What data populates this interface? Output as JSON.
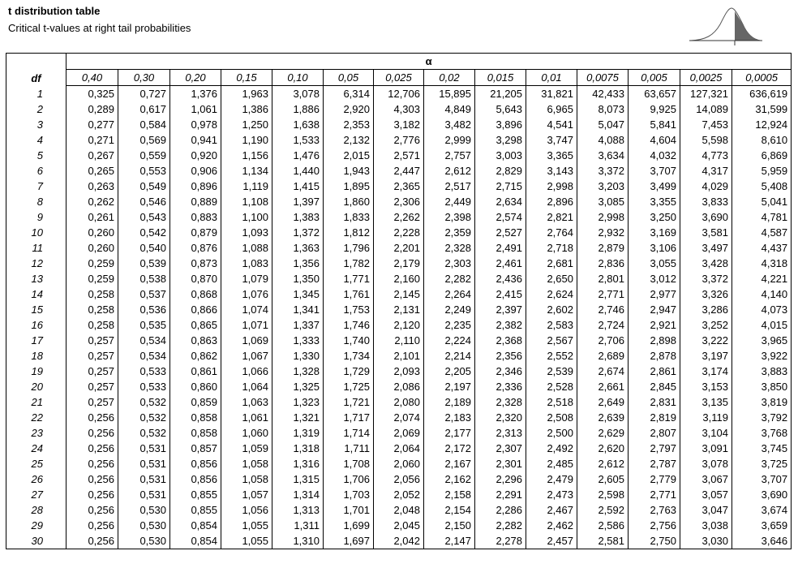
{
  "header": {
    "title": "t distribution table",
    "subtitle": "Critical t-values at right tail probabilities"
  },
  "table": {
    "df_label": "df",
    "alpha_label": "α",
    "columns": [
      "0,40",
      "0,30",
      "0,20",
      "0,15",
      "0,10",
      "0,05",
      "0,025",
      "0,02",
      "0,015",
      "0,01",
      "0,0075",
      "0,005",
      "0,0025",
      "0,0005"
    ],
    "rows": [
      [
        "1",
        "0,325",
        "0,727",
        "1,376",
        "1,963",
        "3,078",
        "6,314",
        "12,706",
        "15,895",
        "21,205",
        "31,821",
        "42,433",
        "63,657",
        "127,321",
        "636,619"
      ],
      [
        "2",
        "0,289",
        "0,617",
        "1,061",
        "1,386",
        "1,886",
        "2,920",
        "4,303",
        "4,849",
        "5,643",
        "6,965",
        "8,073",
        "9,925",
        "14,089",
        "31,599"
      ],
      [
        "3",
        "0,277",
        "0,584",
        "0,978",
        "1,250",
        "1,638",
        "2,353",
        "3,182",
        "3,482",
        "3,896",
        "4,541",
        "5,047",
        "5,841",
        "7,453",
        "12,924"
      ],
      [
        "4",
        "0,271",
        "0,569",
        "0,941",
        "1,190",
        "1,533",
        "2,132",
        "2,776",
        "2,999",
        "3,298",
        "3,747",
        "4,088",
        "4,604",
        "5,598",
        "8,610"
      ],
      [
        "5",
        "0,267",
        "0,559",
        "0,920",
        "1,156",
        "1,476",
        "2,015",
        "2,571",
        "2,757",
        "3,003",
        "3,365",
        "3,634",
        "4,032",
        "4,773",
        "6,869"
      ],
      [
        "6",
        "0,265",
        "0,553",
        "0,906",
        "1,134",
        "1,440",
        "1,943",
        "2,447",
        "2,612",
        "2,829",
        "3,143",
        "3,372",
        "3,707",
        "4,317",
        "5,959"
      ],
      [
        "7",
        "0,263",
        "0,549",
        "0,896",
        "1,119",
        "1,415",
        "1,895",
        "2,365",
        "2,517",
        "2,715",
        "2,998",
        "3,203",
        "3,499",
        "4,029",
        "5,408"
      ],
      [
        "8",
        "0,262",
        "0,546",
        "0,889",
        "1,108",
        "1,397",
        "1,860",
        "2,306",
        "2,449",
        "2,634",
        "2,896",
        "3,085",
        "3,355",
        "3,833",
        "5,041"
      ],
      [
        "9",
        "0,261",
        "0,543",
        "0,883",
        "1,100",
        "1,383",
        "1,833",
        "2,262",
        "2,398",
        "2,574",
        "2,821",
        "2,998",
        "3,250",
        "3,690",
        "4,781"
      ],
      [
        "10",
        "0,260",
        "0,542",
        "0,879",
        "1,093",
        "1,372",
        "1,812",
        "2,228",
        "2,359",
        "2,527",
        "2,764",
        "2,932",
        "3,169",
        "3,581",
        "4,587"
      ],
      [
        "11",
        "0,260",
        "0,540",
        "0,876",
        "1,088",
        "1,363",
        "1,796",
        "2,201",
        "2,328",
        "2,491",
        "2,718",
        "2,879",
        "3,106",
        "3,497",
        "4,437"
      ],
      [
        "12",
        "0,259",
        "0,539",
        "0,873",
        "1,083",
        "1,356",
        "1,782",
        "2,179",
        "2,303",
        "2,461",
        "2,681",
        "2,836",
        "3,055",
        "3,428",
        "4,318"
      ],
      [
        "13",
        "0,259",
        "0,538",
        "0,870",
        "1,079",
        "1,350",
        "1,771",
        "2,160",
        "2,282",
        "2,436",
        "2,650",
        "2,801",
        "3,012",
        "3,372",
        "4,221"
      ],
      [
        "14",
        "0,258",
        "0,537",
        "0,868",
        "1,076",
        "1,345",
        "1,761",
        "2,145",
        "2,264",
        "2,415",
        "2,624",
        "2,771",
        "2,977",
        "3,326",
        "4,140"
      ],
      [
        "15",
        "0,258",
        "0,536",
        "0,866",
        "1,074",
        "1,341",
        "1,753",
        "2,131",
        "2,249",
        "2,397",
        "2,602",
        "2,746",
        "2,947",
        "3,286",
        "4,073"
      ],
      [
        "16",
        "0,258",
        "0,535",
        "0,865",
        "1,071",
        "1,337",
        "1,746",
        "2,120",
        "2,235",
        "2,382",
        "2,583",
        "2,724",
        "2,921",
        "3,252",
        "4,015"
      ],
      [
        "17",
        "0,257",
        "0,534",
        "0,863",
        "1,069",
        "1,333",
        "1,740",
        "2,110",
        "2,224",
        "2,368",
        "2,567",
        "2,706",
        "2,898",
        "3,222",
        "3,965"
      ],
      [
        "18",
        "0,257",
        "0,534",
        "0,862",
        "1,067",
        "1,330",
        "1,734",
        "2,101",
        "2,214",
        "2,356",
        "2,552",
        "2,689",
        "2,878",
        "3,197",
        "3,922"
      ],
      [
        "19",
        "0,257",
        "0,533",
        "0,861",
        "1,066",
        "1,328",
        "1,729",
        "2,093",
        "2,205",
        "2,346",
        "2,539",
        "2,674",
        "2,861",
        "3,174",
        "3,883"
      ],
      [
        "20",
        "0,257",
        "0,533",
        "0,860",
        "1,064",
        "1,325",
        "1,725",
        "2,086",
        "2,197",
        "2,336",
        "2,528",
        "2,661",
        "2,845",
        "3,153",
        "3,850"
      ],
      [
        "21",
        "0,257",
        "0,532",
        "0,859",
        "1,063",
        "1,323",
        "1,721",
        "2,080",
        "2,189",
        "2,328",
        "2,518",
        "2,649",
        "2,831",
        "3,135",
        "3,819"
      ],
      [
        "22",
        "0,256",
        "0,532",
        "0,858",
        "1,061",
        "1,321",
        "1,717",
        "2,074",
        "2,183",
        "2,320",
        "2,508",
        "2,639",
        "2,819",
        "3,119",
        "3,792"
      ],
      [
        "23",
        "0,256",
        "0,532",
        "0,858",
        "1,060",
        "1,319",
        "1,714",
        "2,069",
        "2,177",
        "2,313",
        "2,500",
        "2,629",
        "2,807",
        "3,104",
        "3,768"
      ],
      [
        "24",
        "0,256",
        "0,531",
        "0,857",
        "1,059",
        "1,318",
        "1,711",
        "2,064",
        "2,172",
        "2,307",
        "2,492",
        "2,620",
        "2,797",
        "3,091",
        "3,745"
      ],
      [
        "25",
        "0,256",
        "0,531",
        "0,856",
        "1,058",
        "1,316",
        "1,708",
        "2,060",
        "2,167",
        "2,301",
        "2,485",
        "2,612",
        "2,787",
        "3,078",
        "3,725"
      ],
      [
        "26",
        "0,256",
        "0,531",
        "0,856",
        "1,058",
        "1,315",
        "1,706",
        "2,056",
        "2,162",
        "2,296",
        "2,479",
        "2,605",
        "2,779",
        "3,067",
        "3,707"
      ],
      [
        "27",
        "0,256",
        "0,531",
        "0,855",
        "1,057",
        "1,314",
        "1,703",
        "2,052",
        "2,158",
        "2,291",
        "2,473",
        "2,598",
        "2,771",
        "3,057",
        "3,690"
      ],
      [
        "28",
        "0,256",
        "0,530",
        "0,855",
        "1,056",
        "1,313",
        "1,701",
        "2,048",
        "2,154",
        "2,286",
        "2,467",
        "2,592",
        "2,763",
        "3,047",
        "3,674"
      ],
      [
        "29",
        "0,256",
        "0,530",
        "0,854",
        "1,055",
        "1,311",
        "1,699",
        "2,045",
        "2,150",
        "2,282",
        "2,462",
        "2,586",
        "2,756",
        "3,038",
        "3,659"
      ],
      [
        "30",
        "0,256",
        "0,530",
        "0,854",
        "1,055",
        "1,310",
        "1,697",
        "2,042",
        "2,147",
        "2,278",
        "2,457",
        "2,581",
        "2,750",
        "3,030",
        "3,646"
      ]
    ]
  }
}
